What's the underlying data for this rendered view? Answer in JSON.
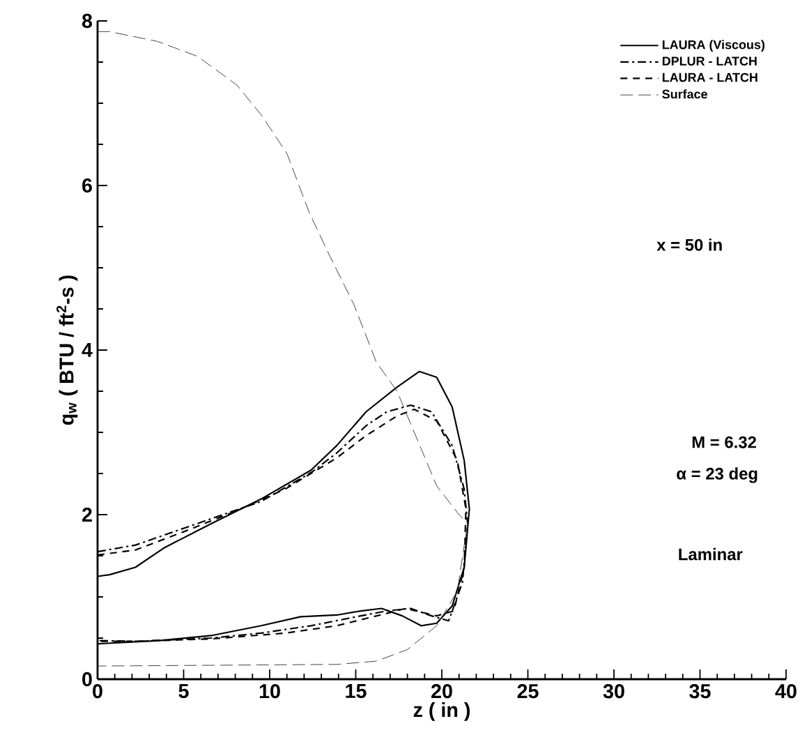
{
  "chart_data": {
    "type": "line",
    "xlabel": "z ( in )",
    "ylabel": "q$_{w}$ ( BTU / ft$^{2}$-s )",
    "xlim": [
      0,
      40
    ],
    "xticks": [
      0,
      5,
      10,
      15,
      20,
      25,
      30,
      35,
      40
    ],
    "ylim": [
      0,
      8
    ],
    "yticks": [
      0,
      2,
      4,
      6,
      8
    ],
    "legend": "top right",
    "grid": false,
    "marker": "none",
    "annotations": [
      "x = 50 in",
      "M = 6.32",
      "α = 23 deg",
      "Laminar"
    ],
    "series": [
      {
        "name": "LAURA (Viscous)",
        "color": "#000000",
        "line_style": "solid",
        "x": [
          0,
          0.7,
          2.2,
          3.9,
          6.6,
          9.5,
          12.4,
          13.9,
          15.6,
          17.4,
          18.7,
          19.7,
          20.6,
          21.3,
          21.6,
          21.3,
          20.6,
          19.7,
          18.8,
          17.7,
          16.5,
          15.3,
          13.9,
          11.8,
          9.5,
          6.6,
          3.6,
          0
        ],
        "values": [
          1.25,
          1.27,
          1.36,
          1.6,
          1.89,
          2.19,
          2.54,
          2.84,
          3.25,
          3.55,
          3.74,
          3.67,
          3.31,
          2.66,
          2.07,
          1.36,
          0.89,
          0.68,
          0.65,
          0.77,
          0.86,
          0.83,
          0.78,
          0.76,
          0.65,
          0.53,
          0.47,
          0.43
        ]
      },
      {
        "name": "DPLUR - LATCH",
        "color": "#000000",
        "line_style": "dashdot",
        "x": [
          0,
          2.2,
          6.6,
          9.5,
          12.4,
          13.9,
          15.6,
          16.8,
          18.2,
          19.4,
          20.6,
          21.3,
          21.5,
          21.2,
          20.4,
          19.4,
          18.2,
          16.8,
          15.3,
          12.4,
          9.5,
          6.6,
          2.2,
          0
        ],
        "values": [
          1.55,
          1.63,
          1.95,
          2.16,
          2.51,
          2.75,
          3.08,
          3.25,
          3.33,
          3.25,
          2.84,
          2.31,
          1.89,
          1.18,
          0.71,
          0.77,
          0.86,
          0.83,
          0.77,
          0.65,
          0.56,
          0.5,
          0.46,
          0.47
        ]
      },
      {
        "name": "LAURA - LATCH",
        "color": "#000000",
        "line_style": "dashed",
        "x": [
          0,
          2.2,
          5.1,
          8.0,
          10.9,
          13.9,
          15.6,
          17.4,
          18.4,
          19.7,
          20.9,
          21.4,
          21.3,
          20.7,
          19.7,
          17.9,
          16.8,
          13.9,
          10.9,
          6.6,
          2.2,
          0
        ],
        "values": [
          1.51,
          1.57,
          1.8,
          2.04,
          2.31,
          2.69,
          2.96,
          3.2,
          3.28,
          3.14,
          2.66,
          2.07,
          1.36,
          0.83,
          0.77,
          0.86,
          0.8,
          0.65,
          0.56,
          0.49,
          0.46,
          0.46
        ]
      },
      {
        "name": "Surface",
        "color": "#444444",
        "line_style": "loosely dashed",
        "x": [
          0,
          0.7,
          3.5,
          5.8,
          8.1,
          9.5,
          11.0,
          12.3,
          13.5,
          14.9,
          16.2,
          17.4,
          18.6,
          19.7,
          21.0,
          21.5,
          20.9,
          19.7,
          18.0,
          16.2,
          13.9,
          0
        ],
        "values": [
          7.87,
          7.87,
          7.75,
          7.57,
          7.22,
          6.86,
          6.39,
          5.67,
          5.14,
          4.55,
          3.85,
          3.5,
          2.9,
          2.35,
          2.0,
          1.9,
          1.07,
          0.65,
          0.36,
          0.22,
          0.18,
          0.16
        ]
      }
    ]
  }
}
